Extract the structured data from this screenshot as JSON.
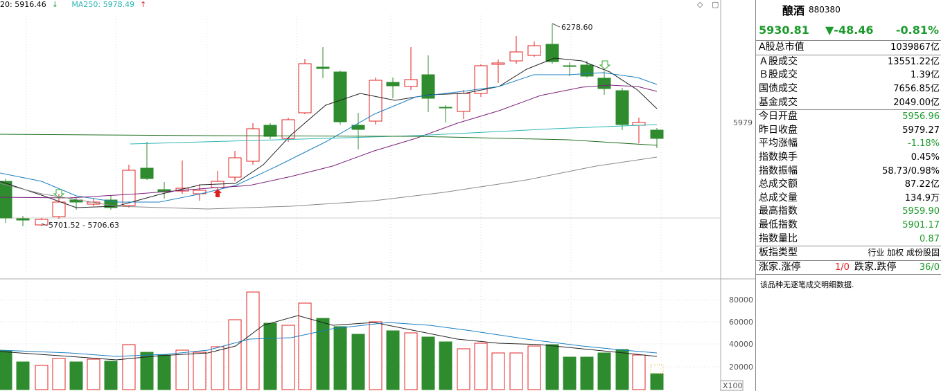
{
  "legend": {
    "ma20": "20: 5916.46",
    "ma20_arrow": "↓",
    "ma250": "MA250: 5978.49",
    "ma250_arrow": "↑"
  },
  "annotations": {
    "high": "6278.60",
    "low_range": "5701.52 - 5706.63",
    "ref_price": "5979",
    "volume_unit": "X100"
  },
  "volume_axis": [
    "80000",
    "60000",
    "40000",
    "20000"
  ],
  "colors": {
    "up": "#e02020",
    "down": "#2e8b2e",
    "ma_short": "#222222",
    "ma_mid": "#1a7fc1",
    "ma_long": "#7a1f7a",
    "ma_very_long": "#888888",
    "ma250": "#2bb5b5",
    "ma_green": "#1e6e1e"
  },
  "panel": {
    "name": "酿酒",
    "code": "880380",
    "price": "5930.81",
    "change": "▼-48.46",
    "change_pct": "-0.81%",
    "rows": [
      {
        "label": "A股总市值",
        "value": "1039867亿",
        "color": "black"
      },
      {
        "label": "Ａ股成交",
        "value": "13551.22亿",
        "color": "black"
      },
      {
        "label": "Ｂ股成交",
        "value": "1.39亿",
        "color": "black"
      },
      {
        "label": "国债成交",
        "value": "7656.85亿",
        "color": "black"
      },
      {
        "label": "基金成交",
        "value": "2049.00亿",
        "color": "black"
      },
      {
        "label": "今日开盘",
        "value": "5956.96",
        "color": "green"
      },
      {
        "label": "昨日收盘",
        "value": "5979.27",
        "color": "black"
      },
      {
        "label": "平均涨幅",
        "value": "-1.18%",
        "color": "green"
      },
      {
        "label": "指数换手",
        "value": "0.45%",
        "color": "black"
      },
      {
        "label": "指数振幅",
        "value": "58.73/0.98%",
        "color": "black"
      },
      {
        "label": "总成交额",
        "value": "87.22亿",
        "color": "black"
      },
      {
        "label": "总成交量",
        "value": "134.9万",
        "color": "black"
      },
      {
        "label": "最高指数",
        "value": "5959.90",
        "color": "green"
      },
      {
        "label": "最低指数",
        "value": "5901.17",
        "color": "green"
      },
      {
        "label": "指数量比",
        "value": "0.87",
        "color": "green"
      }
    ],
    "sector_label": "板指类型",
    "sector_value": "行业 加权 成份股固",
    "adv_label": "涨家.涨停",
    "adv_value": "1/0",
    "dec_label": "跌家.跌停",
    "dec_value": "36/0",
    "note": "该品种无逐笔成交明细数据."
  }
}
